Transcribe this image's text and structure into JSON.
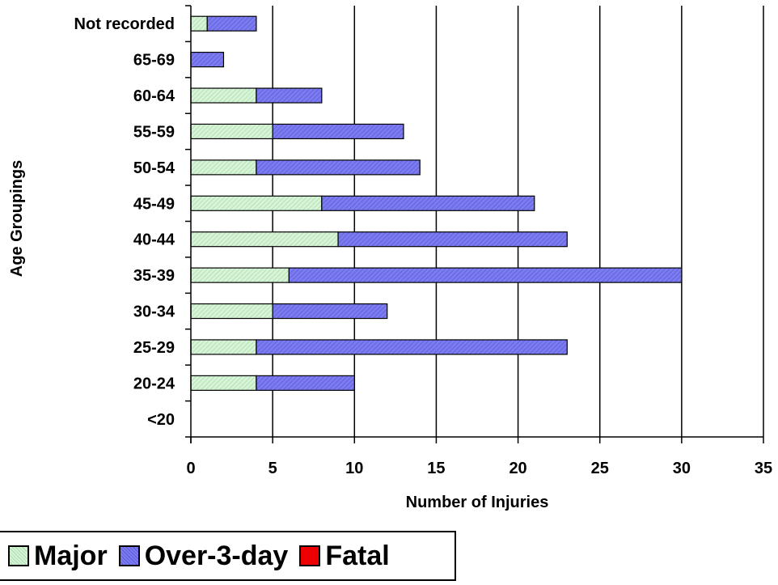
{
  "chart_data": {
    "type": "bar",
    "orientation": "horizontal",
    "stacked": true,
    "categories": [
      "<20",
      "20-24",
      "25-29",
      "30-34",
      "35-39",
      "40-44",
      "45-49",
      "50-54",
      "55-59",
      "60-64",
      "65-69",
      "Not recorded"
    ],
    "series": [
      {
        "name": "Major",
        "color": "#c8eec8",
        "values": [
          0,
          4,
          4,
          5,
          6,
          9,
          8,
          4,
          5,
          4,
          0,
          1
        ]
      },
      {
        "name": "Over-3-day",
        "color": "#7070ee",
        "values": [
          0,
          6,
          19,
          7,
          24,
          14,
          13,
          10,
          8,
          4,
          2,
          3
        ]
      },
      {
        "name": "Fatal",
        "color": "#ee0000",
        "values": [
          0,
          0,
          0,
          0,
          0,
          0,
          0,
          0,
          0,
          0,
          0,
          0
        ]
      }
    ],
    "xlabel": "Number of Injuries",
    "ylabel": "Age Groupings",
    "xlim": [
      0,
      35
    ],
    "xticks": [
      "0",
      "5",
      "10",
      "15",
      "20",
      "25",
      "30",
      "35"
    ],
    "grid": "vertical",
    "legend": "bottom-left"
  }
}
